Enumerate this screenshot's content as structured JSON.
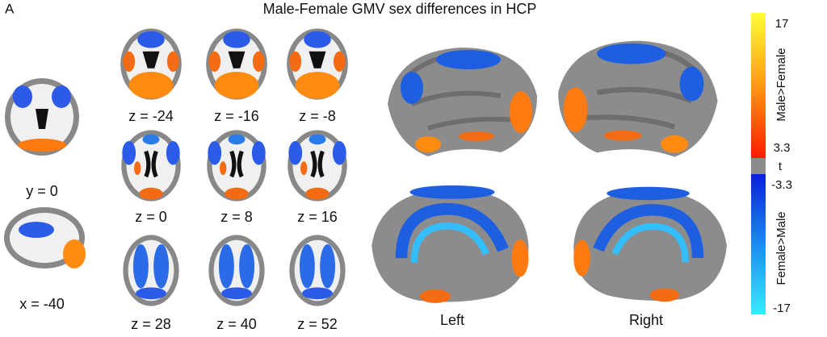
{
  "panel_label": "A",
  "title": "Male-Female GMV sex differences in HCP",
  "slices": {
    "left": [
      "y = 0",
      "x = -40"
    ],
    "grid": [
      "z = -24",
      "z = -16",
      "z = -8",
      "z = 0",
      "z = 8",
      "z = 16",
      "z = 28",
      "z = 40",
      "z = 52"
    ]
  },
  "hemispheres": [
    "Left",
    "Right"
  ],
  "colorbar": {
    "ticks": [
      "17",
      "3.3",
      "t",
      "-3.3",
      "-17"
    ],
    "labels": [
      "Male>Female",
      "Female>Male"
    ]
  }
}
